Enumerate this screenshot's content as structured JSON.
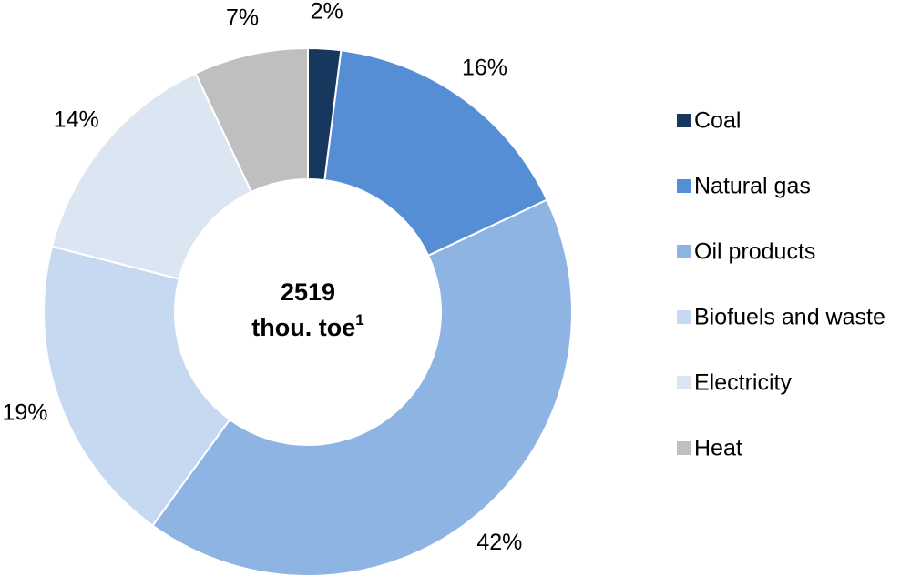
{
  "chart_data": {
    "type": "donut",
    "categories": [
      "Coal",
      "Natural gas",
      "Oil products",
      "Biofuels and waste",
      "Electricity",
      "Heat"
    ],
    "values": [
      2,
      16,
      42,
      19,
      14,
      7
    ],
    "value_labels": [
      "2%",
      "16%",
      "42%",
      "19%",
      "14%",
      "7%"
    ],
    "colors": [
      "#17375e",
      "#558ed5",
      "#8eb4e3",
      "#c6d9f1",
      "#dce6f2",
      "#bfbfbf"
    ],
    "center_text": [
      "2519",
      "thou. toe"
    ],
    "center_footnote": "1",
    "legend": "right"
  }
}
